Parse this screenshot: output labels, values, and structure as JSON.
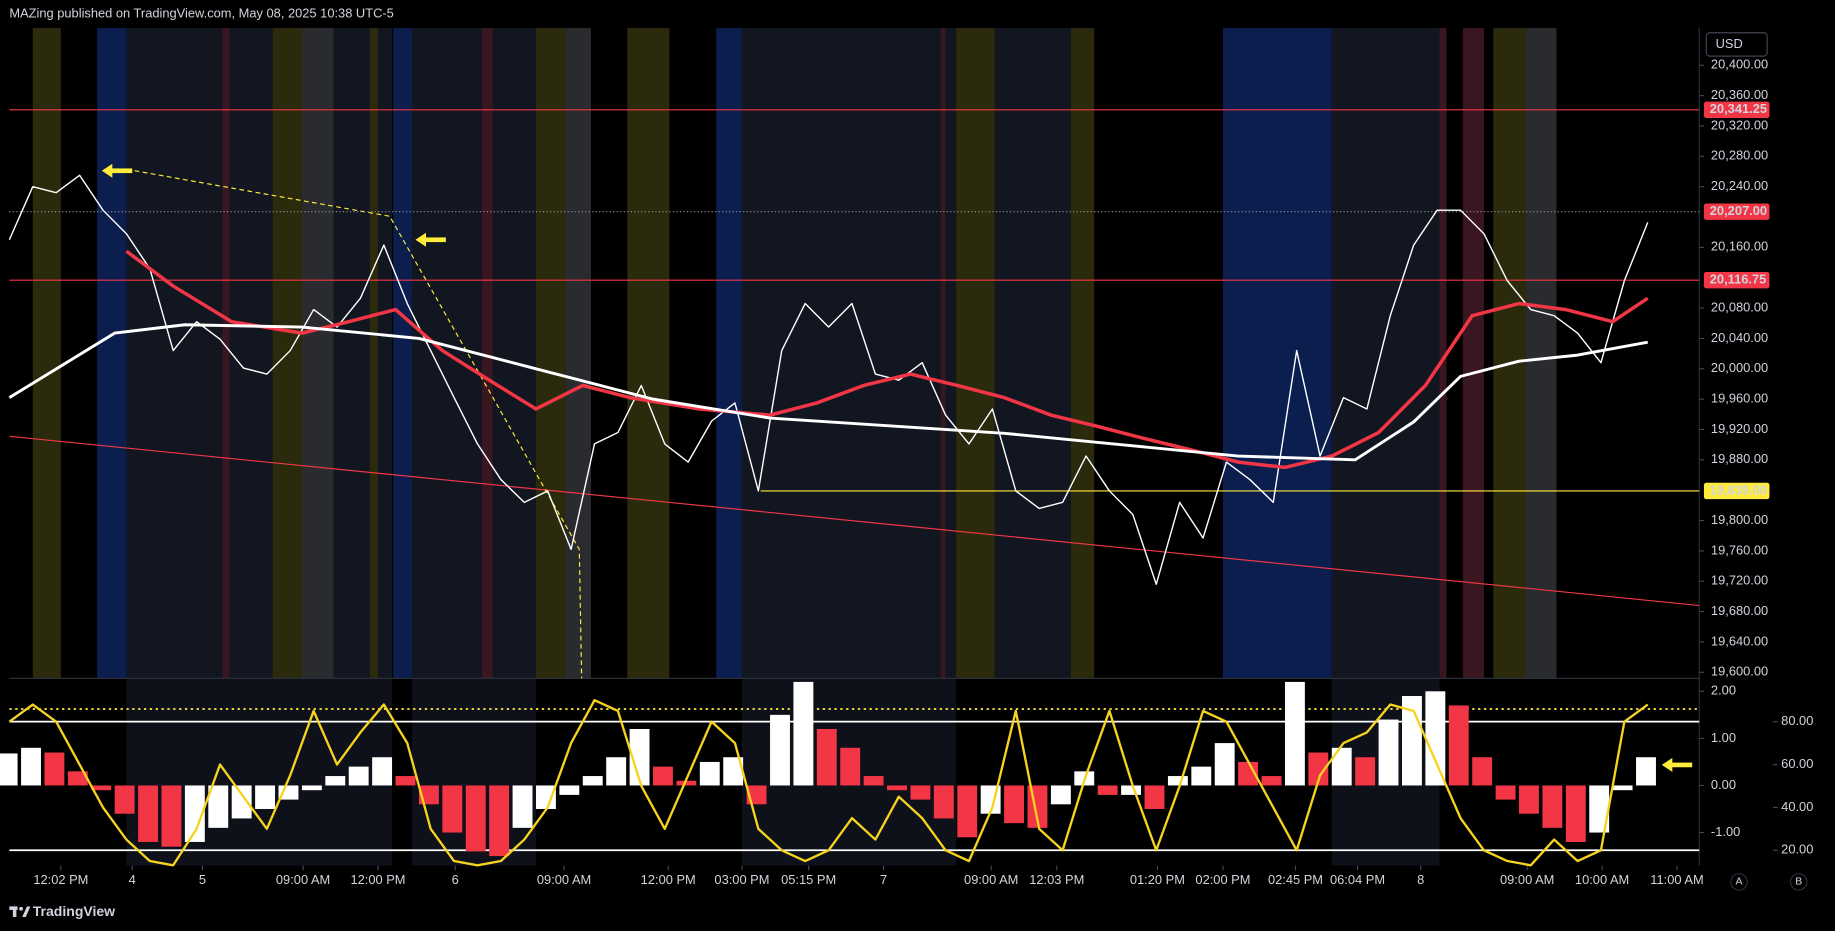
{
  "header": "MAZing published on TradingView.com, May 08, 2025 10:38 UTC-5",
  "footer": "TradingView",
  "currency": "USD",
  "axis_buttons": [
    "A",
    "B"
  ],
  "chart_data": [
    {
      "type": "line",
      "x": [
        0,
        2,
        4,
        6,
        8,
        10,
        12,
        14,
        16,
        18,
        20,
        22,
        24,
        26,
        28,
        30,
        32,
        34,
        36,
        38,
        40,
        42,
        44,
        46,
        48,
        50,
        52,
        54,
        56,
        58,
        60,
        62,
        64,
        66,
        68,
        70,
        72,
        74,
        76,
        78,
        80,
        82,
        84,
        86,
        88,
        90,
        92,
        94,
        96,
        98,
        100,
        102,
        104,
        106,
        108,
        110,
        112,
        114,
        116,
        118,
        120,
        122,
        124,
        126,
        128,
        130,
        132,
        134,
        136,
        138,
        140
      ],
      "series": [
        {
          "color": "#ffffff",
          "values": [
            20170,
            20240,
            20232,
            20255,
            20209,
            20178,
            20132,
            20024,
            20062,
            20039,
            20001,
            19993,
            20024,
            20078,
            20055,
            20093,
            20163,
            20086,
            20024,
            19962,
            19901,
            19854,
            19824,
            19839,
            19762,
            19901,
            19916,
            19978,
            19901,
            19877,
            19931,
            19955,
            19839,
            20024,
            20086,
            20055,
            20086,
            19993,
            19985,
            20008,
            19939,
            19901,
            19947,
            19839,
            19816,
            19824,
            19885,
            19839,
            19808,
            19716,
            19824,
            19777,
            19877,
            19854,
            19824,
            20024,
            19885,
            19962,
            19947,
            20070,
            20163,
            20209,
            20209,
            20178,
            20116,
            20078,
            20070,
            20047,
            20008,
            20116,
            20193
          ]
        },
        {
          "color": "#f23645",
          "width": 3,
          "x": [
            10,
            14,
            19,
            25,
            29,
            33,
            37,
            41,
            45,
            49,
            53,
            59,
            65,
            69,
            73,
            77,
            81,
            85,
            89,
            93,
            97,
            101,
            105,
            109,
            113,
            117,
            121,
            125,
            129,
            133,
            137,
            140
          ],
          "values": [
            20155,
            20109,
            20062,
            20047,
            20062,
            20078,
            20024,
            19985,
            19947,
            19978,
            19962,
            19947,
            19939,
            19955,
            19978,
            19993,
            19978,
            19962,
            19939,
            19924,
            19908,
            19893,
            19877,
            19870,
            19885,
            19916,
            19978,
            20070,
            20086,
            20078,
            20062,
            20093
          ]
        },
        {
          "color": "#ffffff",
          "width": 2.5,
          "x": [
            0,
            9,
            15,
            25,
            35,
            45,
            55,
            65,
            75,
            85,
            95,
            105,
            115,
            120,
            124,
            129,
            134,
            140
          ],
          "values": [
            19962,
            20047,
            20058,
            20055,
            20040,
            20000,
            19960,
            19935,
            19925,
            19915,
            19900,
            19885,
            19880,
            19930,
            19990,
            20010,
            20018,
            20035
          ]
        }
      ],
      "xlim": [
        0,
        144.4
      ],
      "xticks": [
        {
          "value": 4.4,
          "label": "12:02 PM"
        },
        {
          "value": 10.5,
          "label": "4"
        },
        {
          "value": 16.5,
          "label": "5"
        },
        {
          "value": 25.1,
          "label": "09:00 AM"
        },
        {
          "value": 31.5,
          "label": "12:00 PM"
        },
        {
          "value": 38.1,
          "label": "6"
        },
        {
          "value": 47.4,
          "label": "09:00 AM"
        },
        {
          "value": 56.3,
          "label": "12:00 PM"
        },
        {
          "value": 62.6,
          "label": "03:00 PM"
        },
        {
          "value": 68.3,
          "label": "05:15 PM"
        },
        {
          "value": 74.7,
          "label": "7"
        },
        {
          "value": 83.9,
          "label": "09:00 AM"
        },
        {
          "value": 89.5,
          "label": "12:03 PM"
        },
        {
          "value": 98.1,
          "label": "01:20 PM"
        },
        {
          "value": 103.7,
          "label": "02:00 PM"
        },
        {
          "value": 109.9,
          "label": "02:45 PM"
        },
        {
          "value": 115.2,
          "label": "06:04 PM"
        },
        {
          "value": 120.6,
          "label": "8"
        },
        {
          "value": 129.7,
          "label": "09:00 AM"
        },
        {
          "value": 136.1,
          "label": "10:00 AM"
        },
        {
          "value": 142.5,
          "label": "11:00 AM"
        }
      ],
      "ylim": [
        19592,
        20449
      ],
      "yticks": [
        {
          "value": 20400,
          "label": "20,400.00"
        },
        {
          "value": 20360,
          "label": "20,360.00"
        },
        {
          "value": 20320,
          "label": "20,320.00"
        },
        {
          "value": 20280,
          "label": "20,280.00"
        },
        {
          "value": 20240,
          "label": "20,240.00"
        },
        {
          "value": 20160,
          "label": "20,160.00"
        },
        {
          "value": 20080,
          "label": "20,080.00"
        },
        {
          "value": 20040,
          "label": "20,040.00"
        },
        {
          "value": 20000,
          "label": "20,000.00"
        },
        {
          "value": 19960,
          "label": "19,960.00"
        },
        {
          "value": 19920,
          "label": "19,920.00"
        },
        {
          "value": 19880,
          "label": "19,880.00"
        },
        {
          "value": 19800,
          "label": "19,800.00"
        },
        {
          "value": 19760,
          "label": "19,760.00"
        },
        {
          "value": 19720,
          "label": "19,720.00"
        },
        {
          "value": 19680,
          "label": "19,680.00"
        },
        {
          "value": 19640,
          "label": "19,640.00"
        },
        {
          "value": 19600,
          "label": "19,600.00"
        }
      ],
      "levels": [
        {
          "value": 20341.25,
          "label": "20,341.25",
          "color": "#f23645",
          "label_bg": "#f23645",
          "text_color": "#ffffff"
        },
        {
          "value": 20207,
          "label": "20,207.00",
          "color": "#9598a1",
          "dash": true,
          "label_bg": "#f23645",
          "text_color": "#ffffff"
        },
        {
          "value": 20116.75,
          "label": "20,116.75",
          "color": "#f23645",
          "label_bg": "#f23645",
          "text_color": "#ffffff"
        },
        {
          "value": 19839,
          "label": "19,839.00",
          "color": "#ffeb3b",
          "x0": 64.2,
          "label_bg": "#ffeb3b",
          "text_color": "#000000"
        }
      ],
      "trendlines": [
        {
          "color": "#f23645",
          "points": [
            [
              0,
              19911
            ],
            [
              144.4,
              19688
            ]
          ]
        },
        {
          "color": "#ffeb3b",
          "dash": true,
          "points": [
            [
              10.7,
              20261
            ],
            [
              32.5,
              20201
            ],
            [
              48.7,
              19762
            ],
            [
              48.9,
              19592
            ]
          ]
        }
      ]
    },
    {
      "type": "bar",
      "x": [
        0,
        2,
        4,
        6,
        8,
        10,
        12,
        14,
        16,
        18,
        20,
        22,
        24,
        26,
        28,
        30,
        32,
        34,
        36,
        38,
        40,
        42,
        44,
        46,
        48,
        50,
        52,
        54,
        56,
        58,
        60,
        62,
        64,
        66,
        68,
        70,
        72,
        74,
        76,
        78,
        80,
        82,
        84,
        86,
        88,
        90,
        92,
        94,
        96,
        98,
        100,
        102,
        104,
        106,
        108,
        110,
        112,
        114,
        116,
        118,
        120,
        122,
        124,
        126,
        128,
        130,
        132,
        134,
        136,
        138,
        140
      ],
      "xlim": [
        0,
        144.4
      ],
      "series": [
        {
          "type": "bar",
          "up_color": "#ffffff",
          "down_color": "#f23645",
          "values": [
            0.68,
            0.8,
            0.7,
            0.3,
            -0.1,
            -0.6,
            -1.2,
            -1.3,
            -1.2,
            -0.9,
            -0.7,
            -0.5,
            -0.3,
            -0.1,
            0.2,
            0.4,
            0.6,
            0.2,
            -0.4,
            -1.0,
            -1.4,
            -1.5,
            -0.9,
            -0.5,
            -0.2,
            0.2,
            0.6,
            1.2,
            0.4,
            0.1,
            0.5,
            0.6,
            -0.4,
            1.5,
            2.2,
            1.2,
            0.8,
            0.2,
            -0.1,
            -0.3,
            -0.7,
            -1.1,
            -0.6,
            -0.8,
            -0.9,
            -0.4,
            0.3,
            -0.2,
            -0.2,
            -0.5,
            0.2,
            0.4,
            0.9,
            0.5,
            0.2,
            2.2,
            0.7,
            0.8,
            0.6,
            1.4,
            1.9,
            2.0,
            1.7,
            0.6,
            -0.3,
            -0.6,
            -0.9,
            -1.2,
            -1.0,
            -0.1,
            0.6
          ]
        },
        {
          "type": "line",
          "axis": "y2",
          "color": "#f5d31f",
          "width": 2,
          "values": [
            80,
            88,
            80,
            60,
            40,
            25,
            15,
            13,
            30,
            60,
            45,
            30,
            55,
            85,
            60,
            75,
            88,
            70,
            30,
            15,
            13,
            15,
            25,
            40,
            70,
            90,
            85,
            50,
            30,
            55,
            80,
            70,
            30,
            20,
            15,
            20,
            35,
            25,
            45,
            35,
            20,
            15,
            40,
            85,
            30,
            20,
            55,
            85,
            50,
            20,
            50,
            85,
            80,
            60,
            40,
            20,
            55,
            70,
            75,
            88,
            85,
            60,
            35,
            20,
            15,
            13,
            25,
            15,
            20,
            80,
            88
          ]
        }
      ],
      "ylim": [
        -1.7,
        2.275
      ],
      "yticks": [
        {
          "value": 2,
          "label": "2.00"
        },
        {
          "value": 1,
          "label": "1.00"
        },
        {
          "value": 0,
          "label": "0.00"
        },
        {
          "value": -1,
          "label": "-1.00"
        }
      ],
      "y2lim": [
        12.9,
        100.2
      ],
      "y2ticks": [
        {
          "value": 80,
          "label": "80.00"
        },
        {
          "value": 60,
          "label": "60.00"
        },
        {
          "value": 40,
          "label": "40.00"
        },
        {
          "value": 20,
          "label": "20.00"
        }
      ],
      "hlines": [
        {
          "value": 1.625,
          "color": "#ffeb3b",
          "dash": true
        },
        {
          "value": 80,
          "axis": "y2",
          "color": "#ffffff"
        },
        {
          "value": 20,
          "axis": "y2",
          "color": "#ffffff"
        }
      ]
    }
  ]
}
